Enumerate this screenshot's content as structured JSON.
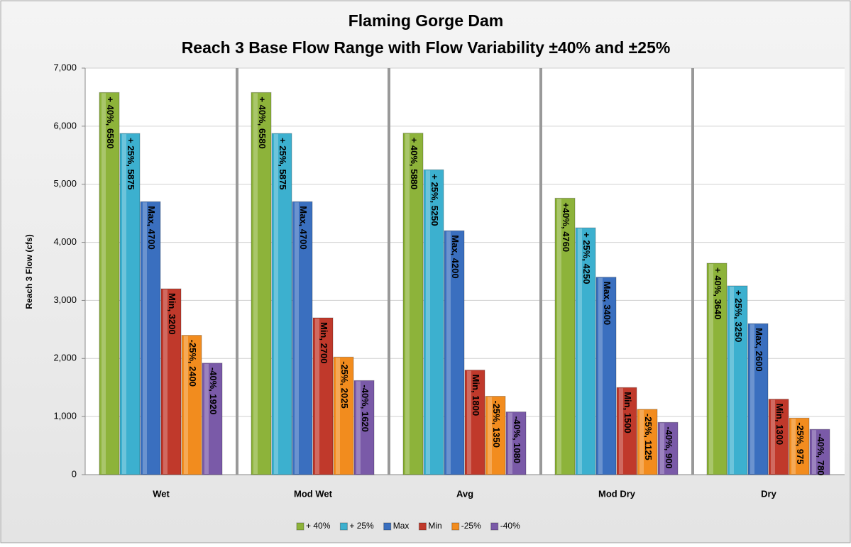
{
  "chart_data": {
    "type": "bar",
    "title": "Flaming Gorge Dam",
    "subtitle": "Reach 3 Base Flow Range with Flow Variability ±40% and ±25%",
    "y_label": "Reach 3 Flow (cfs)",
    "categories": [
      "Wet",
      "Mod Wet",
      "Avg",
      "Mod Dry",
      "Dry"
    ],
    "series": [
      {
        "name": "+ 40%",
        "color": "#8db33a",
        "values": [
          6580,
          6580,
          5880,
          4760,
          3640
        ],
        "value_labels": [
          "+ 40%, 6580",
          "+ 40%, 6580",
          "+ 40%, 5880",
          "+40%, 4760",
          "+ 40%, 3640"
        ]
      },
      {
        "name": "+ 25%",
        "color": "#3cb0cf",
        "values": [
          5875,
          5875,
          5250,
          4250,
          3250
        ],
        "value_labels": [
          "+ 25%, 5875",
          "+ 25%, 5875",
          "+ 25%, 5250",
          "+ 25%, 4250",
          "+ 25%, 3250"
        ]
      },
      {
        "name": "Max",
        "color": "#3a6fbf",
        "values": [
          4700,
          4700,
          4200,
          3400,
          2600
        ],
        "value_labels": [
          "Max, 4700",
          "Max, 4700",
          "Max, 4200",
          "Max, 3400",
          "Max, 2600"
        ]
      },
      {
        "name": "Min",
        "color": "#c0392b",
        "values": [
          3200,
          2700,
          1800,
          1500,
          1300
        ],
        "value_labels": [
          "Min, 3200",
          "Min, 2700",
          "Min, 1800",
          "Min, 1500",
          "Min, 1300"
        ]
      },
      {
        "name": "-25%",
        "color": "#f28c1e",
        "values": [
          2400,
          2025,
          1350,
          1125,
          975
        ],
        "value_labels": [
          "-25%, 2400",
          "-25%, 2025",
          "-25%, 1350",
          "-25%, 1125",
          "-25%, 975"
        ]
      },
      {
        "name": "-40%",
        "color": "#7a5aa8",
        "values": [
          1920,
          1620,
          1080,
          900,
          780
        ],
        "value_labels": [
          "-40%, 1920",
          "-40%, 1620",
          "-40%, 1080",
          "-40%, 900",
          "-40%, 780"
        ]
      }
    ],
    "ylim": [
      0,
      7000
    ],
    "yticks": [
      0,
      {
        "value": 1000,
        "label": "1,000"
      },
      {
        "value": 2000,
        "label": "2,000"
      },
      {
        "value": 3000,
        "label": "3,000"
      },
      {
        "value": 4000,
        "label": "4,000"
      },
      {
        "value": 5000,
        "label": "5,000"
      },
      {
        "value": 6000,
        "label": "6,000"
      },
      {
        "value": 7000,
        "label": "7,000"
      }
    ],
    "grid": true,
    "legend": "bottom"
  }
}
